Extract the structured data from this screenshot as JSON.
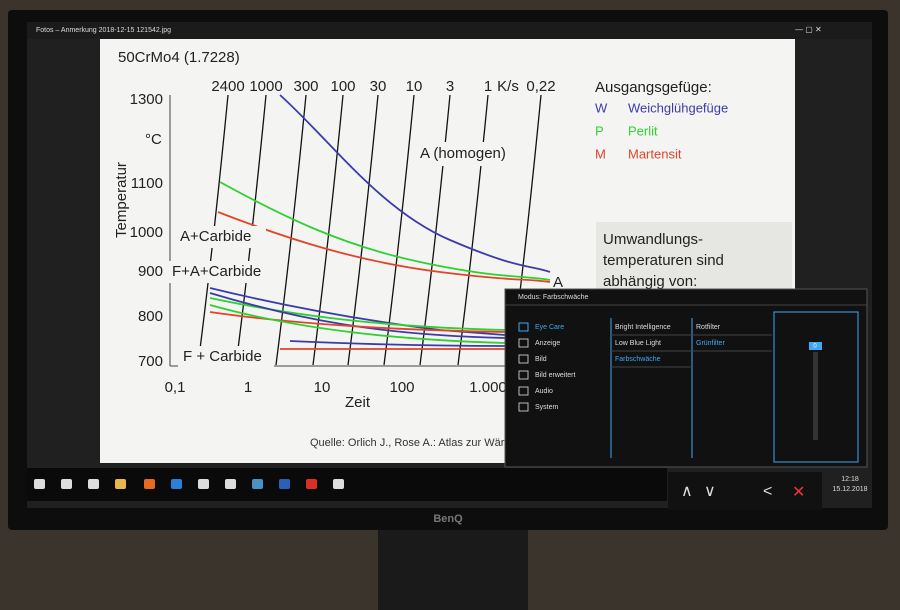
{
  "window": {
    "title": "Fotos – Anmerkung 2018-12-15 121542.jpg"
  },
  "slide": {
    "title": "50CrMo4 (1.7228)",
    "top_axis": [
      "2400",
      "1000",
      "300",
      "100",
      "30",
      "10",
      "3",
      "1",
      "K/s",
      "0,22"
    ],
    "y_axis": {
      "label": "Temperatur",
      "unit": "°C",
      "ticks": [
        "1300",
        "1100",
        "1000",
        "900",
        "800",
        "700"
      ]
    },
    "x_axis": {
      "label": "Zeit",
      "ticks": [
        "0,1",
        "1",
        "10",
        "100",
        "1.000"
      ]
    },
    "regions": [
      "A (homogen)",
      "A+Carbide",
      "F+A+Carbide",
      "F + Carbide",
      "A"
    ],
    "legend": {
      "title": "Ausgangsgefüge:",
      "items": [
        {
          "key": "W",
          "label": "Weichglühgefüge",
          "color": "#3c3ca8"
        },
        {
          "key": "P",
          "label": "Perlit",
          "color": "#2fd12f"
        },
        {
          "key": "M",
          "label": "Martensit",
          "color": "#e0452a"
        }
      ]
    },
    "note": [
      "Umwandlungs-",
      "temperaturen sind",
      "abhängig von:"
    ],
    "source": "Quelle: Orlich J., Rose A.: Atlas zur Wärm"
  },
  "osd": {
    "mode": "Modus: Farbschwäche",
    "menu": [
      "Eye Care",
      "Anzeige",
      "Bild",
      "Bild erweitert",
      "Audio",
      "System"
    ],
    "submenu": [
      "Bright Intelligence",
      "Low Blue Light",
      "Farbschwäche"
    ],
    "options": [
      "Rotfilter",
      "Grünfilter"
    ],
    "slider_value": 0
  },
  "taskbar": {
    "time": "12:18",
    "date": "15.12.2018"
  },
  "brand": "BenQ"
}
